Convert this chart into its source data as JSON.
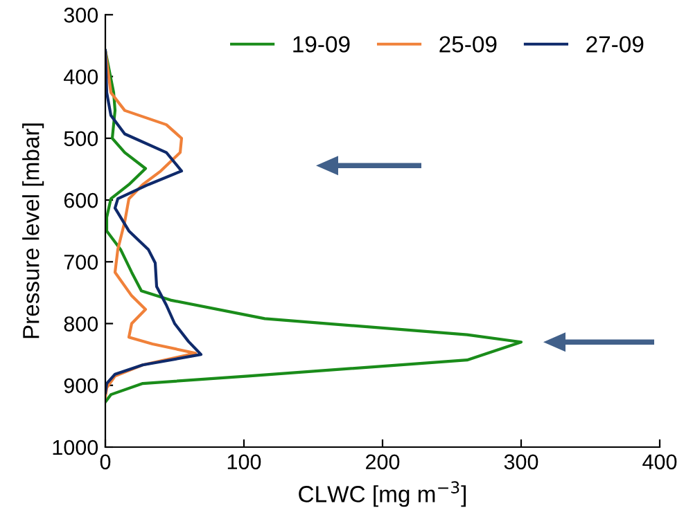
{
  "chart_data": {
    "type": "line",
    "xlabel": "CLWC [mg m$^{−3}$]",
    "ylabel": "Pressure level [mbar]",
    "xlim": [
      0,
      400
    ],
    "xticks": [
      0,
      100,
      200,
      300,
      400
    ],
    "ylim": [
      1000,
      300
    ],
    "yticks": [
      300,
      400,
      500,
      600,
      700,
      800,
      900,
      1000
    ],
    "grid": false,
    "legend": "top",
    "marker": "none",
    "line_style": "solid",
    "series": [
      {
        "name": "19-09",
        "color": "#1a8c1a",
        "x": [
          0,
          6,
          7,
          5,
          14,
          29,
          17,
          4,
          1,
          1,
          11,
          19,
          26,
          47,
          115,
          261,
          300,
          261,
          103,
          27,
          4,
          0
        ],
        "values": [
          358,
          426,
          455,
          500,
          523,
          549,
          575,
          598,
          628,
          650,
          680,
          717,
          747,
          762,
          792,
          818,
          830,
          859,
          885,
          897,
          915,
          927
        ]
      },
      {
        "name": "25-09",
        "color": "#f0813a",
        "x": [
          0,
          4,
          14,
          44,
          55,
          54,
          40,
          27,
          17,
          14,
          9,
          7,
          19,
          29,
          19,
          17,
          34,
          65,
          27,
          7,
          1,
          0
        ],
        "values": [
          358,
          426,
          455,
          478,
          500,
          523,
          553,
          575,
          598,
          635,
          680,
          717,
          755,
          777,
          800,
          822,
          833,
          848,
          867,
          885,
          904,
          919
        ]
      },
      {
        "name": "27-09",
        "color": "#0f2a6b",
        "x": [
          0,
          1,
          4,
          14,
          44,
          55,
          31,
          9,
          7,
          17,
          31,
          36,
          37,
          44,
          50,
          60,
          69,
          27,
          7,
          1,
          0
        ],
        "values": [
          358,
          426,
          463,
          493,
          523,
          553,
          575,
          598,
          613,
          650,
          680,
          702,
          740,
          770,
          800,
          829,
          850,
          867,
          882,
          897,
          912
        ]
      }
    ]
  }
}
